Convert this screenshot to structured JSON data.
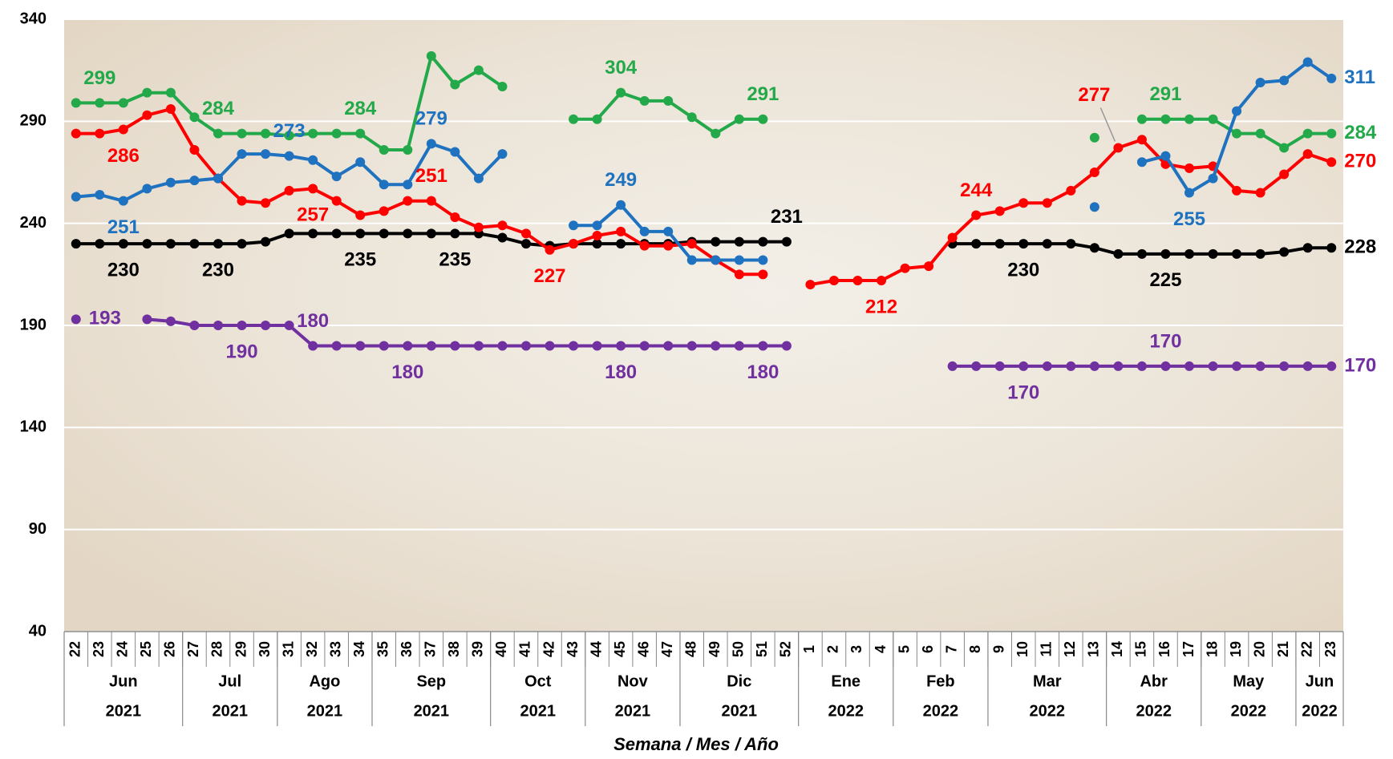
{
  "chart_data": {
    "type": "line",
    "x_label": "Semana / Mes / Año",
    "categories": [
      "22",
      "23",
      "24",
      "25",
      "26",
      "27",
      "28",
      "29",
      "30",
      "31",
      "32",
      "33",
      "34",
      "35",
      "36",
      "37",
      "38",
      "39",
      "40",
      "41",
      "42",
      "43",
      "44",
      "45",
      "46",
      "47",
      "48",
      "49",
      "50",
      "51",
      "52",
      "1",
      "2",
      "3",
      "4",
      "5",
      "6",
      "7",
      "8",
      "9",
      "10",
      "11",
      "12",
      "13",
      "14",
      "15",
      "16",
      "17",
      "18",
      "19",
      "20",
      "21",
      "22",
      "23"
    ],
    "months": [
      "Jun",
      "Jun",
      "Jun",
      "Jun",
      "Jun",
      "Jul",
      "Jul",
      "Jul",
      "Jul",
      "Ago",
      "Ago",
      "Ago",
      "Ago",
      "Sep",
      "Sep",
      "Sep",
      "Sep",
      "Sep",
      "Oct",
      "Oct",
      "Oct",
      "Oct",
      "Nov",
      "Nov",
      "Nov",
      "Nov",
      "Dic",
      "Dic",
      "Dic",
      "Dic",
      "Dic",
      "Ene",
      "Ene",
      "Ene",
      "Ene",
      "Feb",
      "Feb",
      "Feb",
      "Feb",
      "Mar",
      "Mar",
      "Mar",
      "Mar",
      "Mar",
      "Abr",
      "Abr",
      "Abr",
      "Abr",
      "May",
      "May",
      "May",
      "May",
      "Jun",
      "Jun"
    ],
    "years": [
      "2021",
      "2021",
      "2021",
      "2021",
      "2021",
      "2021",
      "2021",
      "2021",
      "2021",
      "2021",
      "2021",
      "2021",
      "2021",
      "2021",
      "2021",
      "2021",
      "2021",
      "2021",
      "2021",
      "2021",
      "2021",
      "2021",
      "2021",
      "2021",
      "2021",
      "2021",
      "2021",
      "2021",
      "2021",
      "2021",
      "2021",
      "2022",
      "2022",
      "2022",
      "2022",
      "2022",
      "2022",
      "2022",
      "2022",
      "2022",
      "2022",
      "2022",
      "2022",
      "2022",
      "2022",
      "2022",
      "2022",
      "2022",
      "2022",
      "2022",
      "2022",
      "2022",
      "2022",
      "2022"
    ],
    "ylim": [
      40,
      340
    ],
    "yticks": [
      40,
      90,
      140,
      190,
      240,
      290,
      340
    ],
    "grid": true,
    "series": [
      {
        "color": "#23a94a",
        "values": [
          299,
          299,
          299,
          304,
          304,
          292,
          284,
          284,
          284,
          283,
          284,
          284,
          284,
          276,
          276,
          322,
          308,
          315,
          307,
          null,
          null,
          291,
          291,
          304,
          300,
          300,
          292,
          284,
          291,
          291,
          null,
          null,
          null,
          null,
          null,
          null,
          null,
          null,
          null,
          null,
          null,
          null,
          null,
          282,
          null,
          291,
          291,
          291,
          291,
          284,
          284,
          277,
          284,
          284
        ],
        "value_labels": [
          null,
          "299",
          null,
          null,
          null,
          null,
          "284",
          null,
          null,
          null,
          null,
          null,
          "284",
          null,
          null,
          null,
          null,
          null,
          null,
          null,
          null,
          null,
          null,
          "304",
          null,
          null,
          null,
          null,
          null,
          "291",
          null,
          null,
          null,
          null,
          null,
          null,
          null,
          null,
          null,
          null,
          null,
          null,
          null,
          null,
          null,
          null,
          "291",
          null,
          null,
          null,
          null,
          null,
          null,
          "284"
        ]
      },
      {
        "color": "#000000",
        "values": [
          230,
          230,
          230,
          230,
          230,
          230,
          230,
          230,
          231,
          235,
          235,
          235,
          235,
          235,
          235,
          235,
          235,
          235,
          233,
          230,
          229,
          230,
          230,
          230,
          230,
          230,
          231,
          231,
          231,
          231,
          231,
          null,
          null,
          null,
          null,
          null,
          null,
          230,
          230,
          230,
          230,
          230,
          230,
          228,
          225,
          225,
          225,
          225,
          225,
          225,
          225,
          226,
          228,
          228
        ],
        "value_labels": [
          null,
          null,
          "230",
          null,
          null,
          null,
          "230",
          null,
          null,
          null,
          null,
          null,
          "235",
          null,
          null,
          null,
          "235",
          null,
          null,
          null,
          null,
          null,
          null,
          null,
          null,
          null,
          null,
          null,
          null,
          null,
          "231",
          null,
          null,
          null,
          null,
          null,
          null,
          null,
          null,
          null,
          "230",
          null,
          null,
          null,
          null,
          null,
          "225",
          null,
          null,
          null,
          null,
          null,
          null,
          "228"
        ]
      },
      {
        "color": "#ff0000",
        "values": [
          284,
          284,
          286,
          293,
          296,
          276,
          262,
          251,
          250,
          256,
          257,
          251,
          244,
          246,
          251,
          251,
          243,
          238,
          239,
          235,
          227,
          230,
          234,
          236,
          229,
          229,
          230,
          222,
          215,
          215,
          null,
          210,
          212,
          212,
          212,
          218,
          219,
          233,
          244,
          246,
          250,
          250,
          256,
          265,
          277,
          281,
          269,
          267,
          268,
          256,
          255,
          264,
          274,
          270
        ],
        "value_labels": [
          null,
          null,
          "286",
          null,
          null,
          null,
          null,
          null,
          null,
          null,
          "257",
          null,
          null,
          null,
          null,
          "251",
          null,
          null,
          null,
          null,
          "227",
          null,
          null,
          null,
          null,
          null,
          null,
          null,
          null,
          null,
          null,
          null,
          null,
          null,
          "212",
          null,
          null,
          null,
          "244",
          null,
          null,
          null,
          null,
          null,
          "277",
          null,
          null,
          null,
          null,
          null,
          null,
          null,
          null,
          "270"
        ]
      },
      {
        "color": "#1f72bf",
        "values": [
          253,
          254,
          251,
          257,
          260,
          261,
          262,
          274,
          274,
          273,
          271,
          263,
          270,
          259,
          259,
          279,
          275,
          262,
          274,
          null,
          null,
          239,
          239,
          249,
          236,
          236,
          222,
          222,
          222,
          222,
          null,
          null,
          null,
          null,
          null,
          null,
          null,
          null,
          null,
          null,
          null,
          null,
          null,
          248,
          null,
          270,
          273,
          255,
          262,
          295,
          309,
          310,
          319,
          311
        ],
        "value_labels": [
          null,
          null,
          "251",
          null,
          null,
          null,
          null,
          null,
          null,
          "273",
          null,
          null,
          null,
          null,
          null,
          "279",
          null,
          null,
          null,
          null,
          null,
          null,
          null,
          "249",
          null,
          null,
          null,
          null,
          null,
          null,
          null,
          null,
          null,
          null,
          null,
          null,
          null,
          null,
          null,
          null,
          null,
          null,
          null,
          null,
          null,
          null,
          null,
          "255",
          null,
          null,
          null,
          null,
          null,
          "311"
        ]
      },
      {
        "color": "#7030a0",
        "values": [
          193,
          null,
          null,
          193,
          192,
          190,
          190,
          190,
          190,
          190,
          180,
          180,
          180,
          180,
          180,
          180,
          180,
          180,
          180,
          180,
          180,
          180,
          180,
          180,
          180,
          180,
          180,
          180,
          180,
          180,
          180,
          null,
          null,
          null,
          null,
          null,
          null,
          170,
          170,
          170,
          170,
          170,
          170,
          170,
          170,
          170,
          170,
          170,
          170,
          170,
          170,
          170,
          170,
          170
        ],
        "value_labels": [
          "193",
          null,
          null,
          null,
          null,
          null,
          null,
          "190",
          null,
          null,
          "180",
          null,
          null,
          null,
          "180",
          null,
          null,
          null,
          null,
          null,
          null,
          null,
          null,
          "180",
          null,
          null,
          null,
          null,
          null,
          "180",
          null,
          null,
          null,
          null,
          null,
          null,
          null,
          null,
          null,
          null,
          "170",
          null,
          null,
          null,
          null,
          null,
          "170",
          null,
          null,
          null,
          null,
          null,
          null,
          "170"
        ]
      }
    ]
  }
}
